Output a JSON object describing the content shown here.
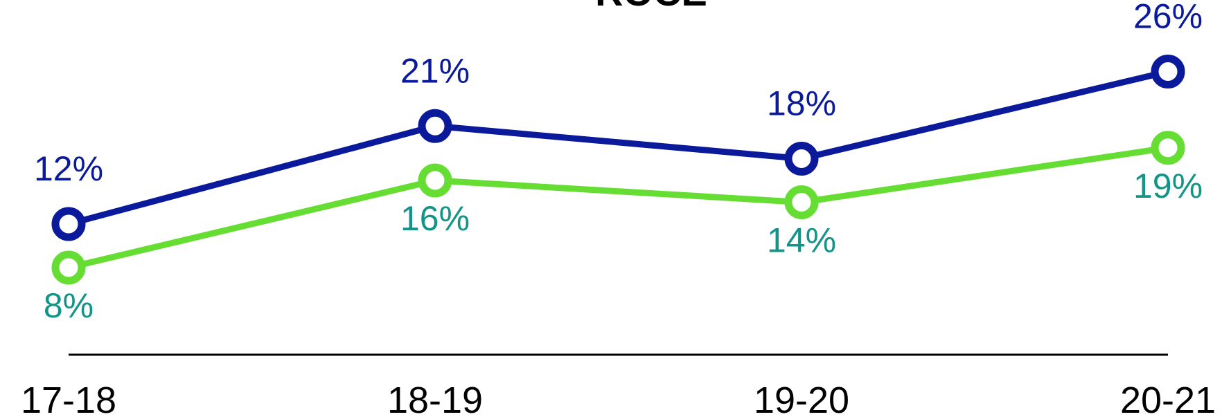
{
  "chart_data": {
    "type": "line",
    "title": "ROCE",
    "categories": [
      "17-18",
      "18-19",
      "19-20",
      "20-21"
    ],
    "series": [
      {
        "color": "#0b1a9a",
        "label_color": "#0b1a9a",
        "label_position": "above",
        "values": [
          12,
          21,
          18,
          26
        ],
        "value_labels": [
          "12%",
          "21%",
          "18%",
          "26%"
        ]
      },
      {
        "color": "#66dd33",
        "label_color": "#129487",
        "label_position": "below",
        "values": [
          8,
          16,
          14,
          19
        ],
        "value_labels": [
          "8%",
          "16%",
          "14%",
          "19%"
        ]
      }
    ],
    "ylim": [
      0,
      30
    ]
  }
}
